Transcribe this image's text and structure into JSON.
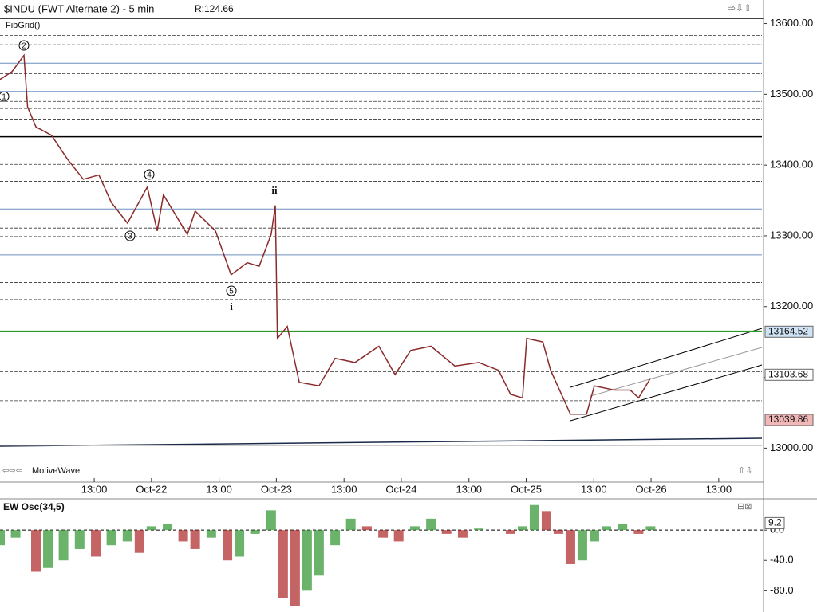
{
  "header": {
    "title": "$INDU (FWT Alternate 2) - 5 min",
    "range": "R:124.66",
    "study": "FibGrid()",
    "watermark": "MotiveWave"
  },
  "waves": [
    "1",
    "2",
    "3",
    "4",
    "5",
    "i",
    "ii"
  ],
  "chart_data": [
    {
      "type": "line",
      "color": "#8a2a2a",
      "x": [
        -29.1,
        -26.8,
        -24.5,
        -23.8,
        -22.2,
        -19.2,
        -16.2,
        -13.1,
        -10.1,
        -7.7,
        -4.6,
        -0.8,
        1.1,
        2.3,
        6.9,
        8.4,
        12.3,
        15.3,
        18.4,
        20.7,
        23.0,
        23.8,
        24.2,
        26.1,
        28.4,
        32.2,
        35.3,
        39.1,
        43.7,
        46.8,
        49.8,
        53.7,
        58.3,
        62.9,
        66.7,
        69.0,
        71.3,
        72.1,
        75.2,
        76.7,
        80.5,
        83.6,
        85.1,
        89.0,
        92.0,
        93.6,
        95.9
      ],
      "values": [
        13521,
        13532,
        13555,
        13482,
        13454,
        13442,
        13409,
        13380,
        13386,
        13347,
        13318,
        13369,
        13307,
        13358,
        13302,
        13335,
        13307,
        13245,
        13262,
        13257,
        13302,
        13343,
        13155,
        13172,
        13093,
        13088,
        13127,
        13121,
        13144,
        13104,
        13138,
        13144,
        13116,
        13121,
        13110,
        13076,
        13071,
        13155,
        13150,
        13110,
        13048,
        13048,
        13088,
        13082,
        13082,
        13071,
        13099
      ],
      "xlim": [
        -29.1,
        117.3
      ],
      "xticks": [
        {
          "value": -11,
          "label": "13:00"
        },
        {
          "value": 0,
          "label": "Oct-22"
        },
        {
          "value": 13,
          "label": "13:00"
        },
        {
          "value": 24,
          "label": "Oct-23"
        },
        {
          "value": 37,
          "label": "13:00"
        },
        {
          "value": 48,
          "label": "Oct-24"
        },
        {
          "value": 61,
          "label": "13:00"
        },
        {
          "value": 72,
          "label": "Oct-25"
        },
        {
          "value": 85,
          "label": "13:00"
        },
        {
          "value": 96,
          "label": "Oct-26"
        },
        {
          "value": 109,
          "label": "13:00"
        }
      ],
      "ylim": [
        12952,
        13613
      ],
      "yticks": [
        {
          "value": 13000,
          "label": "13000.00"
        },
        {
          "value": 13100,
          "label": "13100.00"
        },
        {
          "value": 13200,
          "label": "13200.00"
        },
        {
          "value": 13300,
          "label": "13300.00"
        },
        {
          "value": 13400,
          "label": "13400.00"
        },
        {
          "value": 13500,
          "label": "13500.00"
        },
        {
          "value": 13600,
          "label": "13600.00"
        }
      ],
      "levels": [
        {
          "value": 13592,
          "style": "dashed"
        },
        {
          "value": 13583,
          "style": "dashed"
        },
        {
          "value": 13570,
          "style": "dashed"
        },
        {
          "value": 13544,
          "style": "blue"
        },
        {
          "value": 13536,
          "style": "dashed"
        },
        {
          "value": 13529,
          "style": "dashed"
        },
        {
          "value": 13520,
          "style": "dashed"
        },
        {
          "value": 13504,
          "style": "blue"
        },
        {
          "value": 13490,
          "style": "dashed"
        },
        {
          "value": 13480,
          "style": "dashed"
        },
        {
          "value": 13465,
          "style": "dashed"
        },
        {
          "value": 13440,
          "style": "black"
        },
        {
          "value": 13401,
          "style": "dashed"
        },
        {
          "value": 13377,
          "style": "dashed"
        },
        {
          "value": 13338,
          "style": "blue"
        },
        {
          "value": 13311,
          "style": "dashed"
        },
        {
          "value": 13299,
          "style": "dashed"
        },
        {
          "value": 13273,
          "style": "blue"
        },
        {
          "value": 13234,
          "style": "dashed"
        },
        {
          "value": 13210,
          "style": "dashed"
        },
        {
          "value": 13165,
          "style": "green"
        },
        {
          "value": 13108,
          "style": "dashed"
        },
        {
          "value": 13067,
          "style": "dashed"
        }
      ],
      "price_labels": [
        {
          "value": 13164.52,
          "color": "#cfe3f5"
        },
        {
          "value": 13103.68,
          "color": "#ffffff"
        },
        {
          "value": 13039.86,
          "color": "#f2b8b8"
        }
      ]
    },
    {
      "type": "bar",
      "title": "EW Osc(34,5)",
      "up_color": "#3a9a3a",
      "down_color": "#b03030",
      "x": [
        -29.1,
        -26.1,
        -22.2,
        -19.9,
        -16.9,
        -13.8,
        -10.7,
        -7.7,
        -4.6,
        -2.3,
        0,
        3.1,
        6.1,
        8.4,
        11.5,
        14.6,
        16.9,
        19.9,
        23.0,
        25.3,
        27.6,
        29.9,
        32.2,
        35.3,
        38.3,
        41.4,
        44.5,
        47.5,
        50.6,
        53.7,
        56.7,
        59.8,
        62.9,
        66.0,
        69.0,
        71.3,
        73.6,
        75.9,
        78.2,
        80.5,
        82.8,
        85.1,
        87.4,
        90.5,
        93.6,
        95.9
      ],
      "values": [
        -20,
        -10,
        -55,
        -50,
        -40,
        -25,
        -35,
        -20,
        -15,
        -30,
        5,
        8,
        -15,
        -25,
        -10,
        -40,
        -35,
        -5,
        26,
        -90,
        -100,
        -80,
        -60,
        -20,
        15,
        5,
        -10,
        -15,
        5,
        15,
        -5,
        -10,
        2,
        0,
        -5,
        5,
        33,
        25,
        -5,
        -45,
        -40,
        -15,
        5,
        8,
        -5,
        5
      ],
      "ylim": [
        -108,
        39
      ],
      "yticks": [
        {
          "value": 0,
          "label": "0.0"
        },
        {
          "value": -40,
          "label": "-40.0"
        },
        {
          "value": -80,
          "label": "-80.0"
        }
      ],
      "last_value": 9.2
    }
  ]
}
